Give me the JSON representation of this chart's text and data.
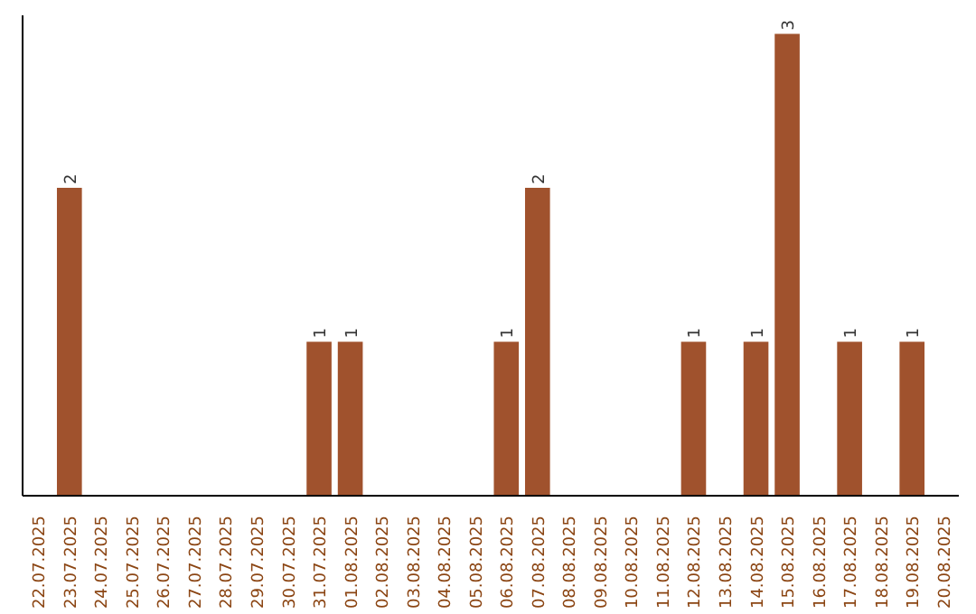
{
  "chart_data": {
    "type": "bar",
    "categories": [
      "22.07.2025",
      "23.07.2025",
      "24.07.2025",
      "25.07.2025",
      "26.07.2025",
      "27.07.2025",
      "28.07.2025",
      "29.07.2025",
      "30.07.2025",
      "31.07.2025",
      "01.08.2025",
      "02.08.2025",
      "03.08.2025",
      "04.08.2025",
      "05.08.2025",
      "06.08.2025",
      "07.08.2025",
      "08.08.2025",
      "09.08.2025",
      "10.08.2025",
      "11.08.2025",
      "12.08.2025",
      "13.08.2025",
      "14.08.2025",
      "15.08.2025",
      "16.08.2025",
      "17.08.2025",
      "18.08.2025",
      "19.08.2025",
      "20.08.2025"
    ],
    "values": [
      0,
      2,
      0,
      0,
      0,
      0,
      0,
      0,
      0,
      1,
      1,
      0,
      0,
      0,
      0,
      1,
      2,
      0,
      0,
      0,
      0,
      1,
      0,
      1,
      3,
      0,
      1,
      0,
      1,
      0
    ],
    "value_labels": [
      null,
      "2",
      null,
      null,
      null,
      null,
      null,
      null,
      null,
      "1",
      "1",
      null,
      null,
      null,
      null,
      "1",
      "2",
      null,
      null,
      null,
      null,
      "1",
      null,
      "1",
      "3",
      null,
      "1",
      null,
      "1",
      null
    ],
    "color": "#a0522d",
    "grid": false,
    "tick_labels": "x"
  }
}
